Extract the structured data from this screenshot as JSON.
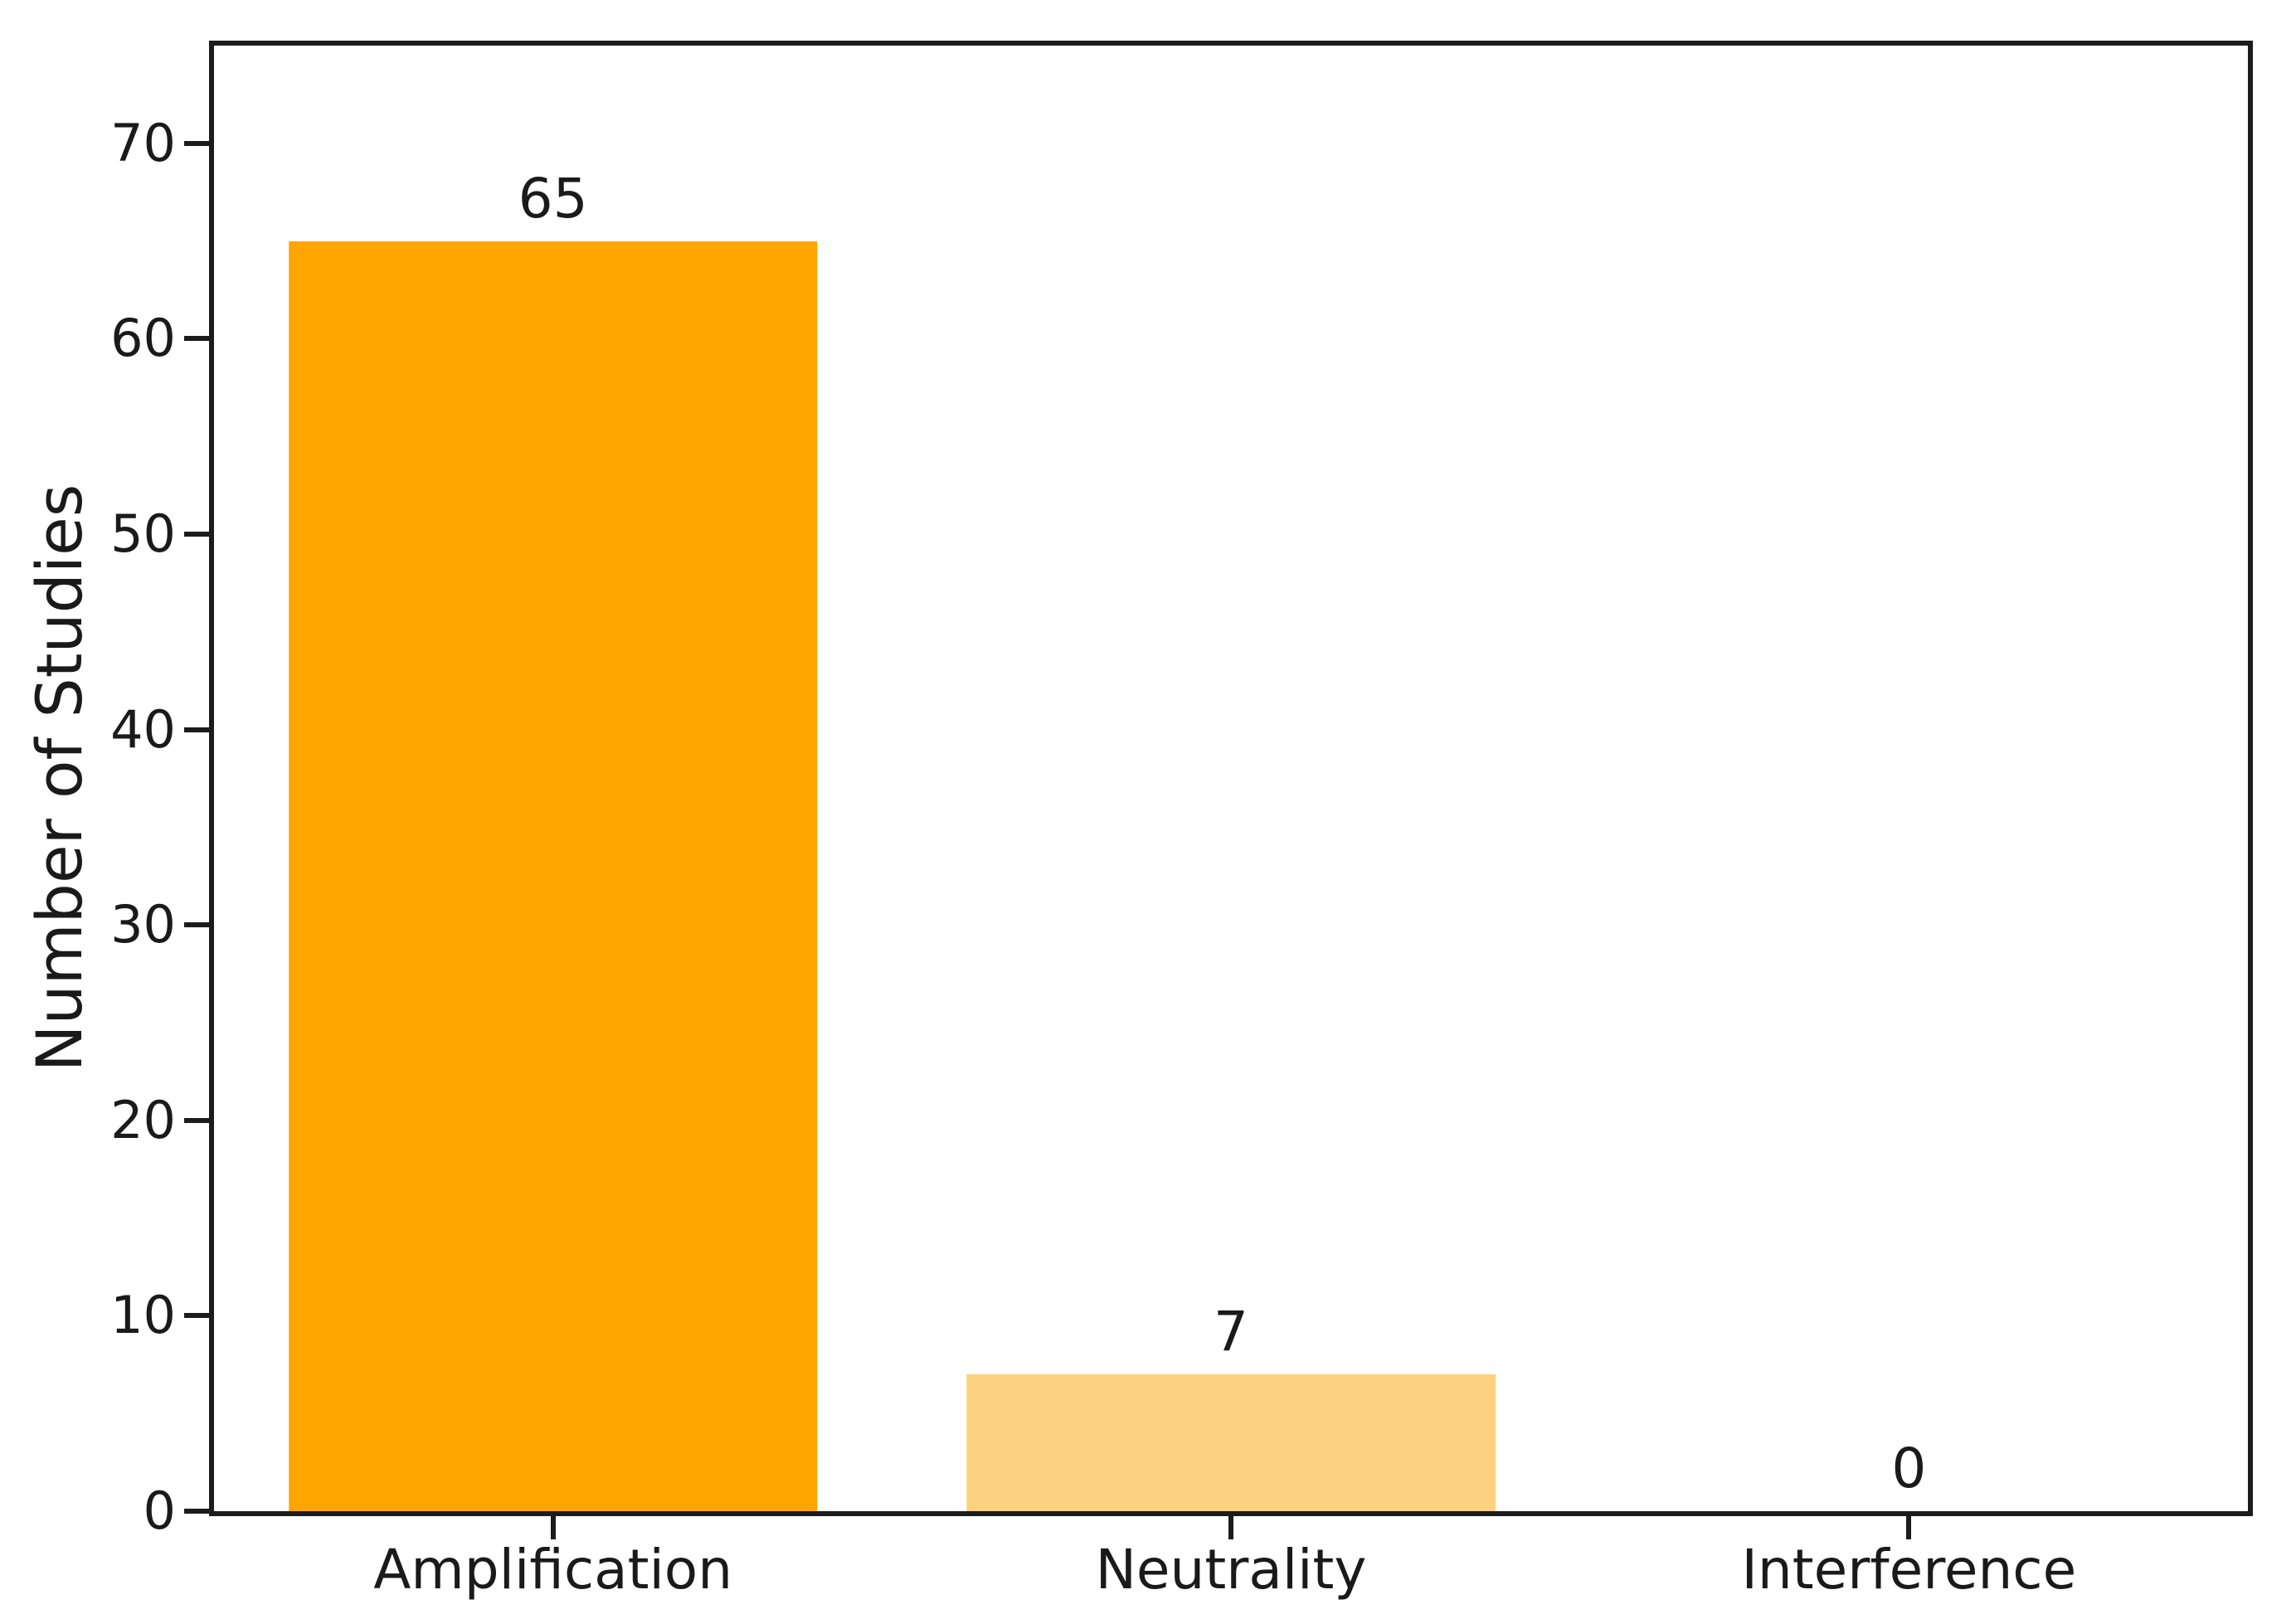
{
  "chart_data": {
    "type": "bar",
    "title": "",
    "ylabel": "Number of Studies",
    "xlabel": "",
    "categories": [
      "Amplification",
      "Neutrality",
      "Interference"
    ],
    "values": [
      65,
      7,
      0
    ],
    "bar_labels": [
      "65",
      "7",
      "0"
    ],
    "yticks": [
      0,
      10,
      20,
      30,
      40,
      50,
      60,
      70
    ],
    "ylim": [
      0,
      75
    ],
    "grid": false,
    "legend": false,
    "bar_colors": [
      "#FFA500",
      "#FCD17F",
      null
    ],
    "axis_color": "#1c1c1c",
    "text_color": "#1a1a1a",
    "background": "#FFFFFF"
  }
}
